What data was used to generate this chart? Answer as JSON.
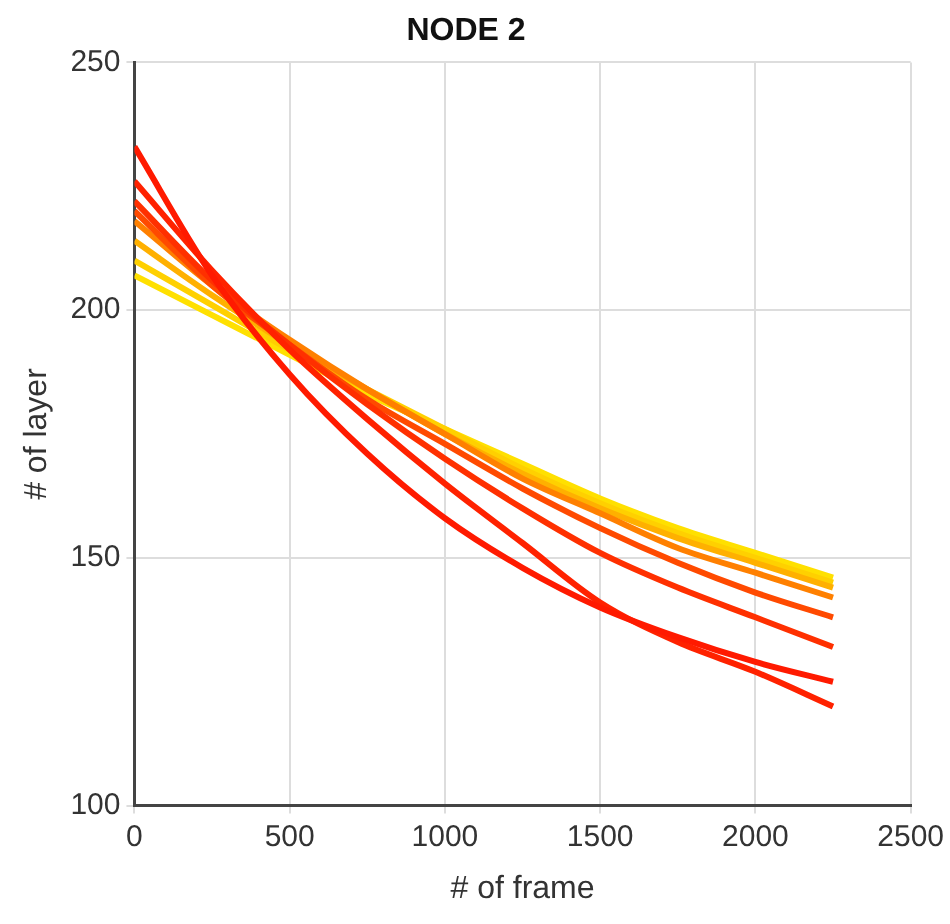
{
  "chart_data": {
    "type": "line",
    "title": "NODE 2",
    "xlabel": "# of frame",
    "ylabel": "# of layer",
    "x": [
      0,
      250,
      500,
      750,
      1000,
      1250,
      1500,
      1750,
      2000,
      2250
    ],
    "series": [
      {
        "color": "#ff1a00",
        "values": [
          233,
          207,
          187,
          171,
          158,
          148,
          140,
          134,
          129,
          125
        ]
      },
      {
        "color": "#ff2200",
        "values": [
          226,
          208,
          192,
          178,
          165,
          153,
          141,
          133,
          127,
          120
        ]
      },
      {
        "color": "#ff3000",
        "values": [
          222,
          206,
          193,
          181,
          170,
          160,
          151,
          144,
          138,
          132
        ]
      },
      {
        "color": "#ff4a00",
        "values": [
          220,
          205,
          193,
          182,
          173,
          164,
          156,
          149,
          143,
          138
        ]
      },
      {
        "color": "#ff8000",
        "values": [
          218,
          205,
          194,
          184,
          175,
          166,
          159,
          152,
          147,
          142
        ]
      },
      {
        "color": "#ffb000",
        "values": [
          214,
          203,
          193,
          184,
          175,
          167,
          160,
          154,
          149,
          144
        ]
      },
      {
        "color": "#ffd000",
        "values": [
          210,
          201,
          192,
          184,
          176,
          168,
          161,
          155,
          150,
          145
        ]
      },
      {
        "color": "#ffe000",
        "values": [
          207,
          199,
          191,
          183,
          176,
          169,
          162,
          156,
          151,
          146
        ]
      }
    ],
    "xlim": [
      0,
      2500
    ],
    "xticks": [
      0,
      500,
      1000,
      1500,
      2000,
      2500
    ],
    "ylim": [
      100,
      250
    ],
    "yticks": [
      100,
      150,
      200,
      250
    ],
    "grid": true,
    "marker": "none",
    "line_style": "solid",
    "legend": false
  }
}
